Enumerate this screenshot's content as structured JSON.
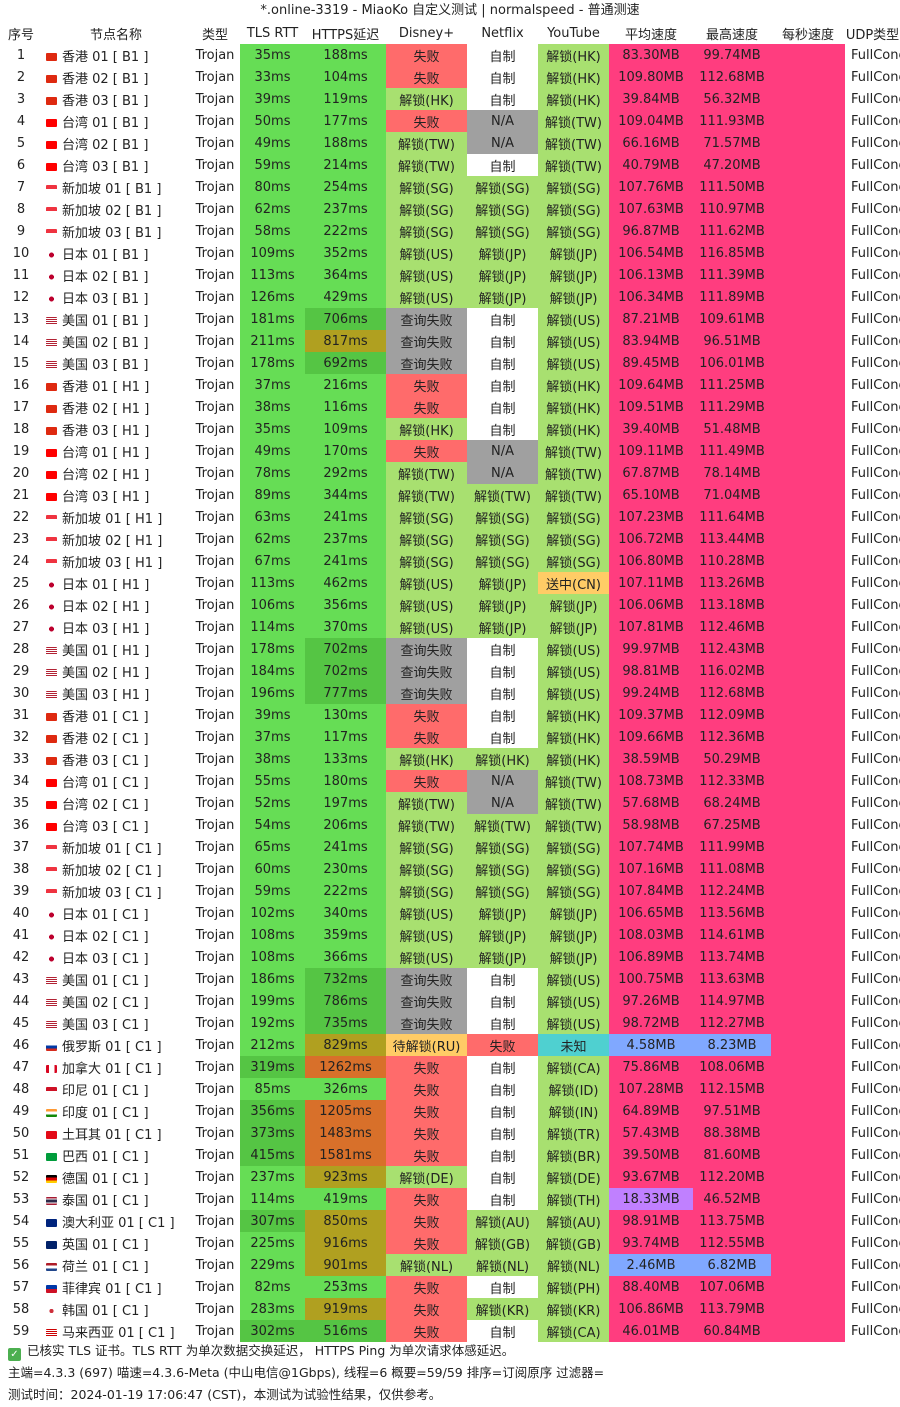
{
  "title": "*.online-3319 - MiaoKo 自定义测试 | normalspeed - 普通测速",
  "headers": [
    "序号",
    "节点名称",
    "类型",
    "TLS RTT",
    "HTTPS延迟",
    "Disney+",
    "Netflix",
    "YouTube",
    "平均速度",
    "最高速度",
    "每秒速度",
    "UDP类型"
  ],
  "rows": [
    [
      "1",
      "香港 01 [ B1 ]",
      "Trojan",
      "35ms",
      "188ms",
      "失败",
      "自制",
      "解锁(HK)",
      "83.30MB",
      "99.74MB",
      "",
      "FullCone",
      "hk"
    ],
    [
      "2",
      "香港 02 [ B1 ]",
      "Trojan",
      "33ms",
      "104ms",
      "失败",
      "自制",
      "解锁(HK)",
      "109.80MB",
      "112.68MB",
      "",
      "FullCone",
      "hk"
    ],
    [
      "3",
      "香港 03 [ B1 ]",
      "Trojan",
      "39ms",
      "119ms",
      "解锁(HK)",
      "自制",
      "解锁(HK)",
      "39.84MB",
      "56.32MB",
      "",
      "FullCone",
      "hk"
    ],
    [
      "4",
      "台湾 01 [ B1 ]",
      "Trojan",
      "50ms",
      "177ms",
      "失败",
      "N/A",
      "解锁(TW)",
      "109.04MB",
      "111.93MB",
      "",
      "FullCone",
      "tw"
    ],
    [
      "5",
      "台湾 02 [ B1 ]",
      "Trojan",
      "49ms",
      "188ms",
      "解锁(TW)",
      "N/A",
      "解锁(TW)",
      "66.16MB",
      "71.57MB",
      "",
      "FullCone",
      "tw"
    ],
    [
      "6",
      "台湾 03 [ B1 ]",
      "Trojan",
      "59ms",
      "214ms",
      "解锁(TW)",
      "自制",
      "解锁(TW)",
      "40.79MB",
      "47.20MB",
      "",
      "FullCone",
      "tw"
    ],
    [
      "7",
      "新加坡 01 [ B1 ]",
      "Trojan",
      "80ms",
      "254ms",
      "解锁(SG)",
      "解锁(SG)",
      "解锁(SG)",
      "107.76MB",
      "111.50MB",
      "",
      "FullCone",
      "sg"
    ],
    [
      "8",
      "新加坡 02 [ B1 ]",
      "Trojan",
      "62ms",
      "237ms",
      "解锁(SG)",
      "解锁(SG)",
      "解锁(SG)",
      "107.63MB",
      "110.97MB",
      "",
      "FullCone",
      "sg"
    ],
    [
      "9",
      "新加坡 03 [ B1 ]",
      "Trojan",
      "58ms",
      "222ms",
      "解锁(SG)",
      "解锁(SG)",
      "解锁(SG)",
      "96.87MB",
      "111.62MB",
      "",
      "FullCone",
      "sg"
    ],
    [
      "10",
      "日本 01 [ B1 ]",
      "Trojan",
      "109ms",
      "352ms",
      "解锁(US)",
      "解锁(JP)",
      "解锁(JP)",
      "106.54MB",
      "116.85MB",
      "",
      "FullCone",
      "jp"
    ],
    [
      "11",
      "日本 02 [ B1 ]",
      "Trojan",
      "113ms",
      "364ms",
      "解锁(US)",
      "解锁(JP)",
      "解锁(JP)",
      "106.13MB",
      "111.39MB",
      "",
      "FullCone",
      "jp"
    ],
    [
      "12",
      "日本 03 [ B1 ]",
      "Trojan",
      "126ms",
      "429ms",
      "解锁(US)",
      "解锁(JP)",
      "解锁(JP)",
      "106.34MB",
      "111.89MB",
      "",
      "FullCone",
      "jp"
    ],
    [
      "13",
      "美国 01 [ B1 ]",
      "Trojan",
      "181ms",
      "706ms",
      "查询失败",
      "自制",
      "解锁(US)",
      "87.21MB",
      "109.61MB",
      "",
      "FullCone",
      "us"
    ],
    [
      "14",
      "美国 02 [ B1 ]",
      "Trojan",
      "211ms",
      "817ms",
      "查询失败",
      "自制",
      "解锁(US)",
      "83.94MB",
      "96.51MB",
      "",
      "FullCone",
      "us"
    ],
    [
      "15",
      "美国 03 [ B1 ]",
      "Trojan",
      "178ms",
      "692ms",
      "查询失败",
      "自制",
      "解锁(US)",
      "89.45MB",
      "106.01MB",
      "",
      "FullCone",
      "us"
    ],
    [
      "16",
      "香港 01 [ H1 ]",
      "Trojan",
      "37ms",
      "216ms",
      "失败",
      "自制",
      "解锁(HK)",
      "109.64MB",
      "111.25MB",
      "",
      "FullCone",
      "hk"
    ],
    [
      "17",
      "香港 02 [ H1 ]",
      "Trojan",
      "38ms",
      "116ms",
      "失败",
      "自制",
      "解锁(HK)",
      "109.51MB",
      "111.29MB",
      "",
      "FullCone",
      "hk"
    ],
    [
      "18",
      "香港 03 [ H1 ]",
      "Trojan",
      "35ms",
      "109ms",
      "解锁(HK)",
      "自制",
      "解锁(HK)",
      "39.40MB",
      "51.48MB",
      "",
      "FullCone",
      "hk"
    ],
    [
      "19",
      "台湾 01 [ H1 ]",
      "Trojan",
      "49ms",
      "170ms",
      "失败",
      "N/A",
      "解锁(TW)",
      "109.11MB",
      "111.49MB",
      "",
      "FullCone",
      "tw"
    ],
    [
      "20",
      "台湾 02 [ H1 ]",
      "Trojan",
      "78ms",
      "292ms",
      "解锁(TW)",
      "N/A",
      "解锁(TW)",
      "67.87MB",
      "78.14MB",
      "",
      "FullCone",
      "tw"
    ],
    [
      "21",
      "台湾 03 [ H1 ]",
      "Trojan",
      "89ms",
      "344ms",
      "解锁(TW)",
      "解锁(TW)",
      "解锁(TW)",
      "65.10MB",
      "71.04MB",
      "",
      "FullCone",
      "tw"
    ],
    [
      "22",
      "新加坡 01 [ H1 ]",
      "Trojan",
      "63ms",
      "241ms",
      "解锁(SG)",
      "解锁(SG)",
      "解锁(SG)",
      "107.23MB",
      "111.64MB",
      "",
      "FullCone",
      "sg"
    ],
    [
      "23",
      "新加坡 02 [ H1 ]",
      "Trojan",
      "62ms",
      "237ms",
      "解锁(SG)",
      "解锁(SG)",
      "解锁(SG)",
      "106.72MB",
      "113.44MB",
      "",
      "FullCone",
      "sg"
    ],
    [
      "24",
      "新加坡 03 [ H1 ]",
      "Trojan",
      "67ms",
      "241ms",
      "解锁(SG)",
      "解锁(SG)",
      "解锁(SG)",
      "106.80MB",
      "110.28MB",
      "",
      "FullCone",
      "sg"
    ],
    [
      "25",
      "日本 01 [ H1 ]",
      "Trojan",
      "113ms",
      "462ms",
      "解锁(US)",
      "解锁(JP)",
      "送中(CN)",
      "107.11MB",
      "113.26MB",
      "",
      "FullCone",
      "jp"
    ],
    [
      "26",
      "日本 02 [ H1 ]",
      "Trojan",
      "106ms",
      "356ms",
      "解锁(US)",
      "解锁(JP)",
      "解锁(JP)",
      "106.06MB",
      "113.18MB",
      "",
      "FullCone",
      "jp"
    ],
    [
      "27",
      "日本 03 [ H1 ]",
      "Trojan",
      "114ms",
      "370ms",
      "解锁(US)",
      "解锁(JP)",
      "解锁(JP)",
      "107.81MB",
      "112.46MB",
      "",
      "FullCone",
      "jp"
    ],
    [
      "28",
      "美国 01 [ H1 ]",
      "Trojan",
      "178ms",
      "702ms",
      "查询失败",
      "自制",
      "解锁(US)",
      "99.97MB",
      "112.43MB",
      "",
      "FullCone",
      "us"
    ],
    [
      "29",
      "美国 02 [ H1 ]",
      "Trojan",
      "184ms",
      "702ms",
      "查询失败",
      "自制",
      "解锁(US)",
      "98.81MB",
      "116.02MB",
      "",
      "FullCone",
      "us"
    ],
    [
      "30",
      "美国 03 [ H1 ]",
      "Trojan",
      "196ms",
      "777ms",
      "查询失败",
      "自制",
      "解锁(US)",
      "99.24MB",
      "112.68MB",
      "",
      "FullCone",
      "us"
    ],
    [
      "31",
      "香港 01 [ C1 ]",
      "Trojan",
      "39ms",
      "130ms",
      "失败",
      "自制",
      "解锁(HK)",
      "109.37MB",
      "112.09MB",
      "",
      "FullCone",
      "hk"
    ],
    [
      "32",
      "香港 02 [ C1 ]",
      "Trojan",
      "37ms",
      "117ms",
      "失败",
      "自制",
      "解锁(HK)",
      "109.66MB",
      "112.36MB",
      "",
      "FullCone",
      "hk"
    ],
    [
      "33",
      "香港 03 [ C1 ]",
      "Trojan",
      "38ms",
      "133ms",
      "解锁(HK)",
      "解锁(HK)",
      "解锁(HK)",
      "38.59MB",
      "50.29MB",
      "",
      "FullCone",
      "hk"
    ],
    [
      "34",
      "台湾 01 [ C1 ]",
      "Trojan",
      "55ms",
      "180ms",
      "失败",
      "N/A",
      "解锁(TW)",
      "108.73MB",
      "112.33MB",
      "",
      "FullCone",
      "tw"
    ],
    [
      "35",
      "台湾 02 [ C1 ]",
      "Trojan",
      "52ms",
      "197ms",
      "解锁(TW)",
      "N/A",
      "解锁(TW)",
      "57.68MB",
      "68.24MB",
      "",
      "FullCone",
      "tw"
    ],
    [
      "36",
      "台湾 03 [ C1 ]",
      "Trojan",
      "54ms",
      "206ms",
      "解锁(TW)",
      "解锁(TW)",
      "解锁(TW)",
      "58.98MB",
      "67.25MB",
      "",
      "FullCone",
      "tw"
    ],
    [
      "37",
      "新加坡 01 [ C1 ]",
      "Trojan",
      "65ms",
      "241ms",
      "解锁(SG)",
      "解锁(SG)",
      "解锁(SG)",
      "107.74MB",
      "111.99MB",
      "",
      "FullCone",
      "sg"
    ],
    [
      "38",
      "新加坡 02 [ C1 ]",
      "Trojan",
      "60ms",
      "230ms",
      "解锁(SG)",
      "解锁(SG)",
      "解锁(SG)",
      "107.16MB",
      "111.08MB",
      "",
      "FullCone",
      "sg"
    ],
    [
      "39",
      "新加坡 03 [ C1 ]",
      "Trojan",
      "59ms",
      "222ms",
      "解锁(SG)",
      "解锁(SG)",
      "解锁(SG)",
      "107.84MB",
      "112.24MB",
      "",
      "FullCone",
      "sg"
    ],
    [
      "40",
      "日本 01 [ C1 ]",
      "Trojan",
      "102ms",
      "340ms",
      "解锁(US)",
      "解锁(JP)",
      "解锁(JP)",
      "106.65MB",
      "113.56MB",
      "",
      "FullCone",
      "jp"
    ],
    [
      "41",
      "日本 02 [ C1 ]",
      "Trojan",
      "108ms",
      "359ms",
      "解锁(US)",
      "解锁(JP)",
      "解锁(JP)",
      "108.03MB",
      "114.61MB",
      "",
      "FullCone",
      "jp"
    ],
    [
      "42",
      "日本 03 [ C1 ]",
      "Trojan",
      "108ms",
      "366ms",
      "解锁(US)",
      "解锁(JP)",
      "解锁(JP)",
      "106.89MB",
      "113.74MB",
      "",
      "FullCone",
      "jp"
    ],
    [
      "43",
      "美国 01 [ C1 ]",
      "Trojan",
      "186ms",
      "732ms",
      "查询失败",
      "自制",
      "解锁(US)",
      "100.75MB",
      "113.63MB",
      "",
      "FullCone",
      "us"
    ],
    [
      "44",
      "美国 02 [ C1 ]",
      "Trojan",
      "199ms",
      "786ms",
      "查询失败",
      "自制",
      "解锁(US)",
      "97.26MB",
      "114.97MB",
      "",
      "FullCone",
      "us"
    ],
    [
      "45",
      "美国 03 [ C1 ]",
      "Trojan",
      "192ms",
      "735ms",
      "查询失败",
      "自制",
      "解锁(US)",
      "98.72MB",
      "112.27MB",
      "",
      "FullCone",
      "us"
    ],
    [
      "46",
      "俄罗斯 01 [ C1 ]",
      "Trojan",
      "212ms",
      "829ms",
      "待解锁(RU)",
      "失败",
      "未知",
      "4.58MB",
      "8.23MB",
      "",
      "FullCone",
      "ru"
    ],
    [
      "47",
      "加拿大 01 [ C1 ]",
      "Trojan",
      "319ms",
      "1262ms",
      "失败",
      "自制",
      "解锁(CA)",
      "75.86MB",
      "108.06MB",
      "",
      "FullCone",
      "ca"
    ],
    [
      "48",
      "印尼 01 [ C1 ]",
      "Trojan",
      "85ms",
      "326ms",
      "失败",
      "自制",
      "解锁(ID)",
      "107.28MB",
      "112.15MB",
      "",
      "FullCone",
      "id"
    ],
    [
      "49",
      "印度 01 [ C1 ]",
      "Trojan",
      "356ms",
      "1205ms",
      "失败",
      "自制",
      "解锁(IN)",
      "64.89MB",
      "97.51MB",
      "",
      "FullCone",
      "in"
    ],
    [
      "50",
      "土耳其 01 [ C1 ]",
      "Trojan",
      "373ms",
      "1483ms",
      "失败",
      "自制",
      "解锁(TR)",
      "57.43MB",
      "88.38MB",
      "",
      "FullCone",
      "tr"
    ],
    [
      "51",
      "巴西 01 [ C1 ]",
      "Trojan",
      "415ms",
      "1581ms",
      "失败",
      "自制",
      "解锁(BR)",
      "39.50MB",
      "81.60MB",
      "",
      "FullCone",
      "br"
    ],
    [
      "52",
      "德国 01 [ C1 ]",
      "Trojan",
      "237ms",
      "923ms",
      "解锁(DE)",
      "自制",
      "解锁(DE)",
      "93.67MB",
      "112.20MB",
      "",
      "FullCone",
      "de"
    ],
    [
      "53",
      "泰国 01 [ C1 ]",
      "Trojan",
      "114ms",
      "419ms",
      "失败",
      "自制",
      "解锁(TH)",
      "18.33MB",
      "46.52MB",
      "",
      "FullCone",
      "th"
    ],
    [
      "54",
      "澳大利亚 01 [ C1 ]",
      "Trojan",
      "307ms",
      "850ms",
      "失败",
      "解锁(AU)",
      "解锁(AU)",
      "98.91MB",
      "113.75MB",
      "",
      "FullCone",
      "au"
    ],
    [
      "55",
      "英国 01 [ C1 ]",
      "Trojan",
      "225ms",
      "916ms",
      "失败",
      "解锁(GB)",
      "解锁(GB)",
      "93.74MB",
      "112.55MB",
      "",
      "FullCone",
      "gb"
    ],
    [
      "56",
      "荷兰 01 [ C1 ]",
      "Trojan",
      "229ms",
      "901ms",
      "解锁(NL)",
      "解锁(NL)",
      "解锁(NL)",
      "2.46MB",
      "6.82MB",
      "",
      "FullCone",
      "nl"
    ],
    [
      "57",
      "菲律宾 01 [ C1 ]",
      "Trojan",
      "82ms",
      "253ms",
      "失败",
      "自制",
      "解锁(PH)",
      "88.40MB",
      "107.06MB",
      "",
      "FullCone",
      "ph"
    ],
    [
      "58",
      "韩国 01 [ C1 ]",
      "Trojan",
      "283ms",
      "919ms",
      "失败",
      "解锁(KR)",
      "解锁(KR)",
      "106.86MB",
      "113.79MB",
      "",
      "FullCone",
      "kr"
    ],
    [
      "59",
      "马来西亚 01 [ C1 ]",
      "Trojan",
      "302ms",
      "516ms",
      "失败",
      "自制",
      "解锁(CA)",
      "46.01MB",
      "60.84MB",
      "",
      "FullCone",
      "my"
    ]
  ],
  "footer": {
    "line1": "已核实 TLS 证书。TLS RTT 为单次数据交换延迟， HTTPS Ping 为单次请求体感延迟。",
    "line2": "主端=4.3.3 (697) 喵速=4.3.6-Meta (中山电信@1Gbps), 线程=6 概要=59/59 排序=订阅原序 过滤器=",
    "line3": "测试时间：2024-01-19 17:06:47 (CST)，本测试为试验性结果，仅供参考。"
  },
  "colors": {
    "green": "#66dd55",
    "greenDark": "#55c544",
    "olive": "#b0a020",
    "orangeRed": "#d8702a",
    "fail": "#ff6b6b",
    "lightGreen": "#a8e070",
    "gray": "#a0a0a0",
    "pink": "#ff3d7f",
    "blue": "#80a8ff",
    "teal": "#4fd0d0",
    "gold": "#ffcc66",
    "orange": "#ffb080"
  }
}
